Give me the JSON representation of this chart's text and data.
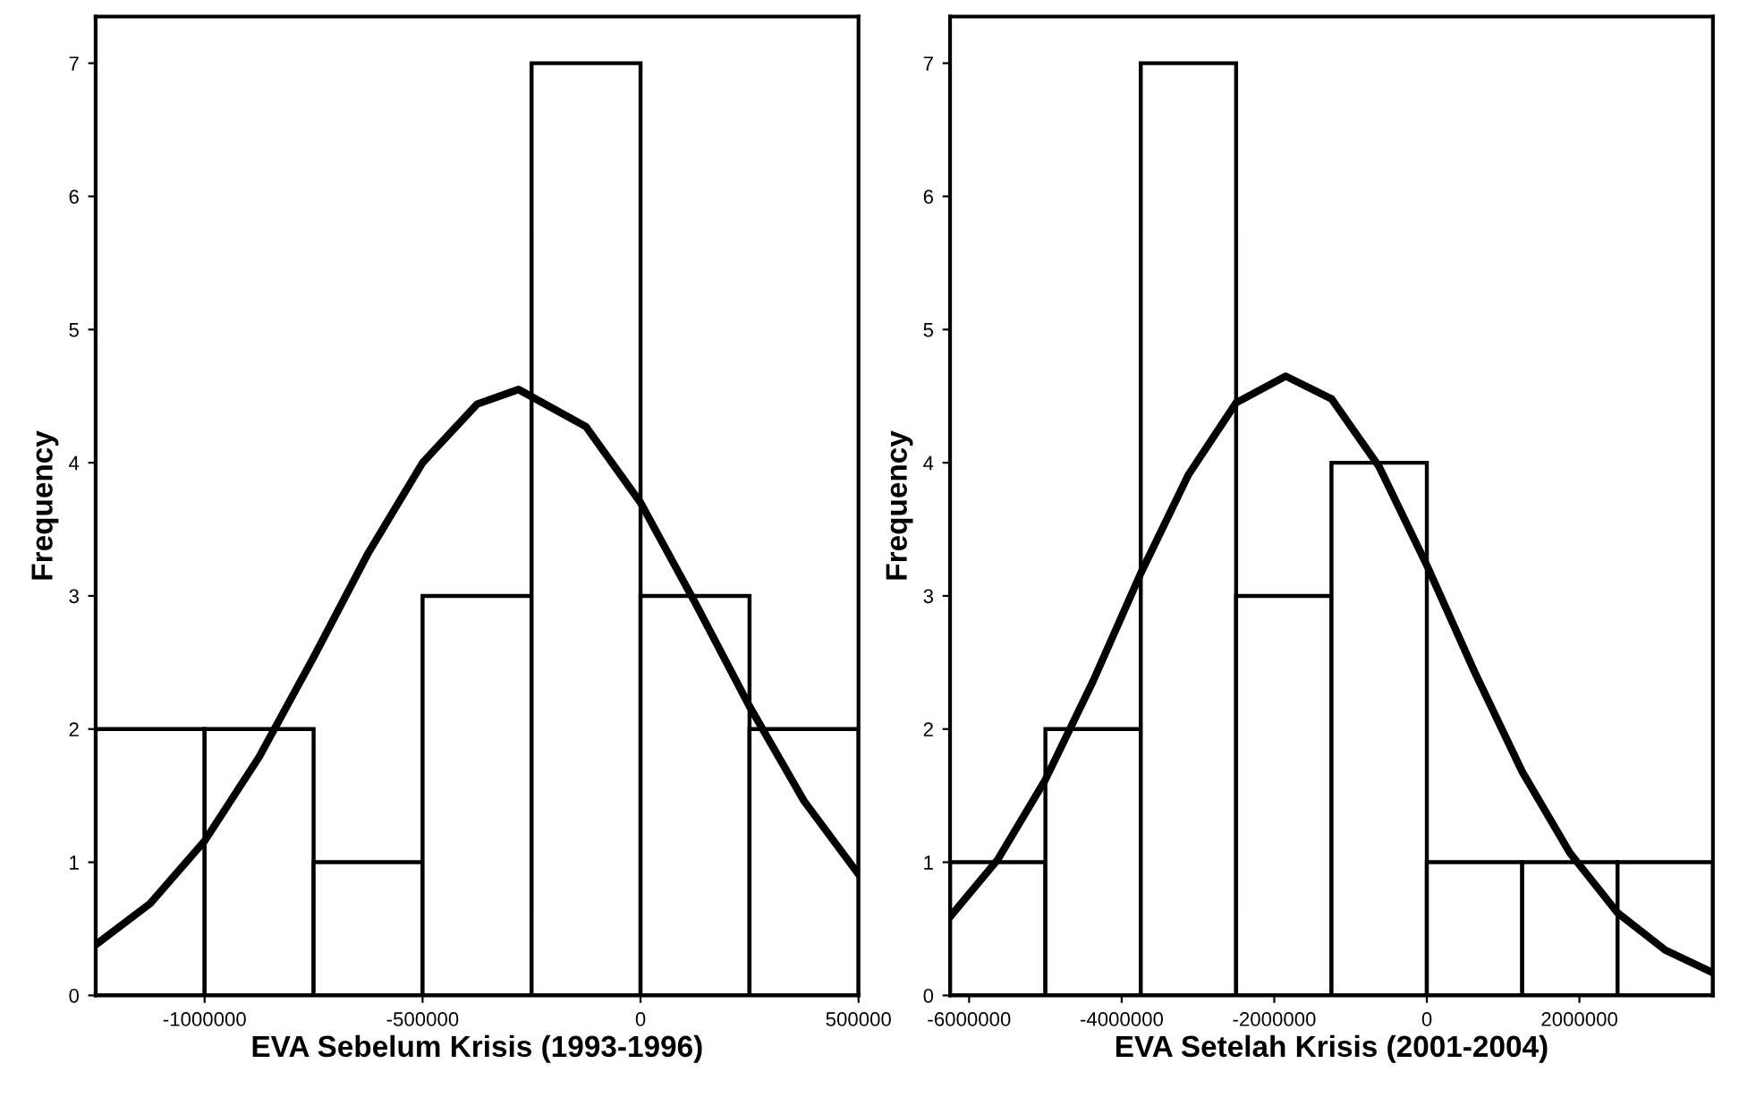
{
  "chart_data": [
    {
      "type": "histogram",
      "xlabel": "EVA Sebelum Krisis (1993-1996)",
      "ylabel": "Frequency",
      "xlim": [
        -1250000,
        500000
      ],
      "ylim": [
        0,
        7.35
      ],
      "xticks": [
        -1000000,
        -500000,
        0,
        500000
      ],
      "yticks": [
        0,
        1,
        2,
        3,
        4,
        5,
        6,
        7
      ],
      "grid": false,
      "series": [
        {
          "color": "#ffffff",
          "bins": [
            -1250000,
            -1000000,
            -750000,
            -500000,
            -250000,
            0,
            250000,
            500000
          ],
          "values": [
            2,
            2,
            1,
            3,
            7,
            3,
            2
          ]
        },
        {
          "type": "line",
          "color": "#000000",
          "x": [
            -1250000,
            -1125000,
            -1000000,
            -875000,
            -750000,
            -625000,
            -500000,
            -375000,
            -280000,
            -125000,
            0,
            125000,
            250000,
            375000,
            500000
          ],
          "values": [
            0.38,
            0.69,
            1.16,
            1.79,
            2.54,
            3.32,
            4.0,
            4.44,
            4.55,
            4.27,
            3.7,
            2.95,
            2.17,
            1.46,
            0.91
          ]
        }
      ]
    },
    {
      "type": "histogram",
      "xlabel": "EVA Setelah Krisis (2001-2004)",
      "ylabel": "Frequency",
      "xlim": [
        -6250000,
        3750000
      ],
      "ylim": [
        0,
        7.35
      ],
      "xticks": [
        -6000000,
        -4000000,
        -2000000,
        0,
        2000000
      ],
      "yticks": [
        0,
        1,
        2,
        3,
        4,
        5,
        6,
        7
      ],
      "grid": false,
      "series": [
        {
          "color": "#ffffff",
          "bins": [
            -6250000,
            -5000000,
            -3750000,
            -2500000,
            -1250000,
            0,
            1250000,
            2500000,
            3750000
          ],
          "values": [
            1,
            2,
            7,
            3,
            4,
            1,
            1,
            1
          ]
        },
        {
          "type": "line",
          "color": "#000000",
          "x": [
            -6250000,
            -5625000,
            -5000000,
            -4375000,
            -3750000,
            -3125000,
            -2500000,
            -1850000,
            -1250000,
            -625000,
            0,
            625000,
            1250000,
            1875000,
            2500000,
            3125000,
            3750000
          ],
          "values": [
            0.59,
            1.02,
            1.62,
            2.36,
            3.17,
            3.91,
            4.45,
            4.65,
            4.48,
            3.97,
            3.23,
            2.43,
            1.68,
            1.07,
            0.62,
            0.34,
            0.17
          ]
        }
      ]
    }
  ]
}
